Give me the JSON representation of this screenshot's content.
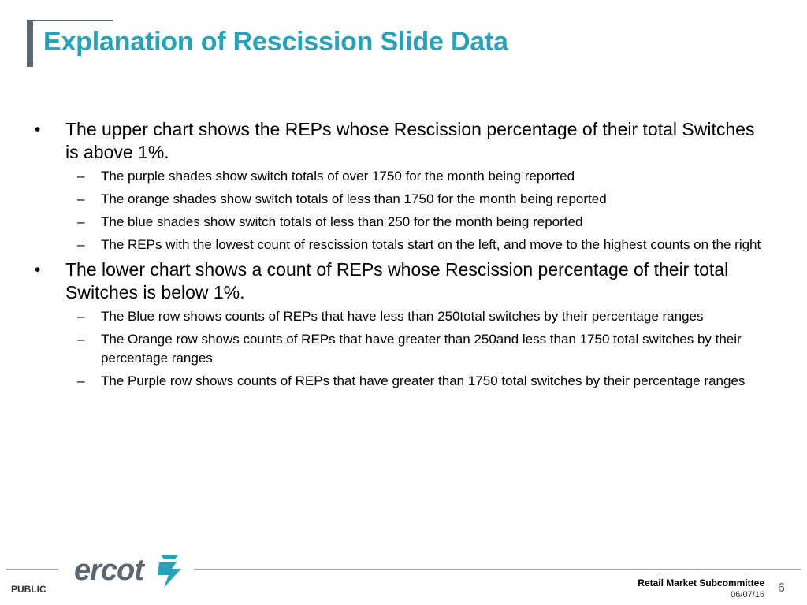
{
  "slide": {
    "title": "Explanation of Rescission Slide Data",
    "bullets": [
      {
        "text": "The upper chart shows the REPs whose Rescission percentage of their total Switches is above 1%.",
        "subs": [
          "The purple shades show switch totals of over 1750 for the month being reported",
          "The orange shades show switch totals of less than 1750 for the month being reported",
          "The blue shades show switch totals of less than 250 for the month being reported",
          "The REPs with the lowest count of rescission totals start on the left, and move to the highest counts on the right"
        ]
      },
      {
        "text": "The lower chart shows a count of REPs whose Rescission percentage of their total Switches is below 1%.",
        "subs": [
          "The Blue row shows counts of REPs that have less than 250total switches by their percentage ranges",
          "The Orange row shows counts of REPs that have greater  than 250and less than 1750 total switches by their percentage ranges",
          "The Purple row shows counts of REPs that have greater than 1750 total switches by their percentage ranges"
        ]
      }
    ],
    "bullet_mark": "•",
    "sub_mark": "–"
  },
  "footer": {
    "classification": "PUBLIC",
    "logo_text": "ercot",
    "committee": "Retail Market Subcommittee",
    "date": "06/07/16",
    "page_number": "6"
  },
  "colors": {
    "title": "#26a3b8",
    "accent_bar": "#5b6770",
    "logo": "#5b6770",
    "logo_mark": "#26a3b8"
  }
}
